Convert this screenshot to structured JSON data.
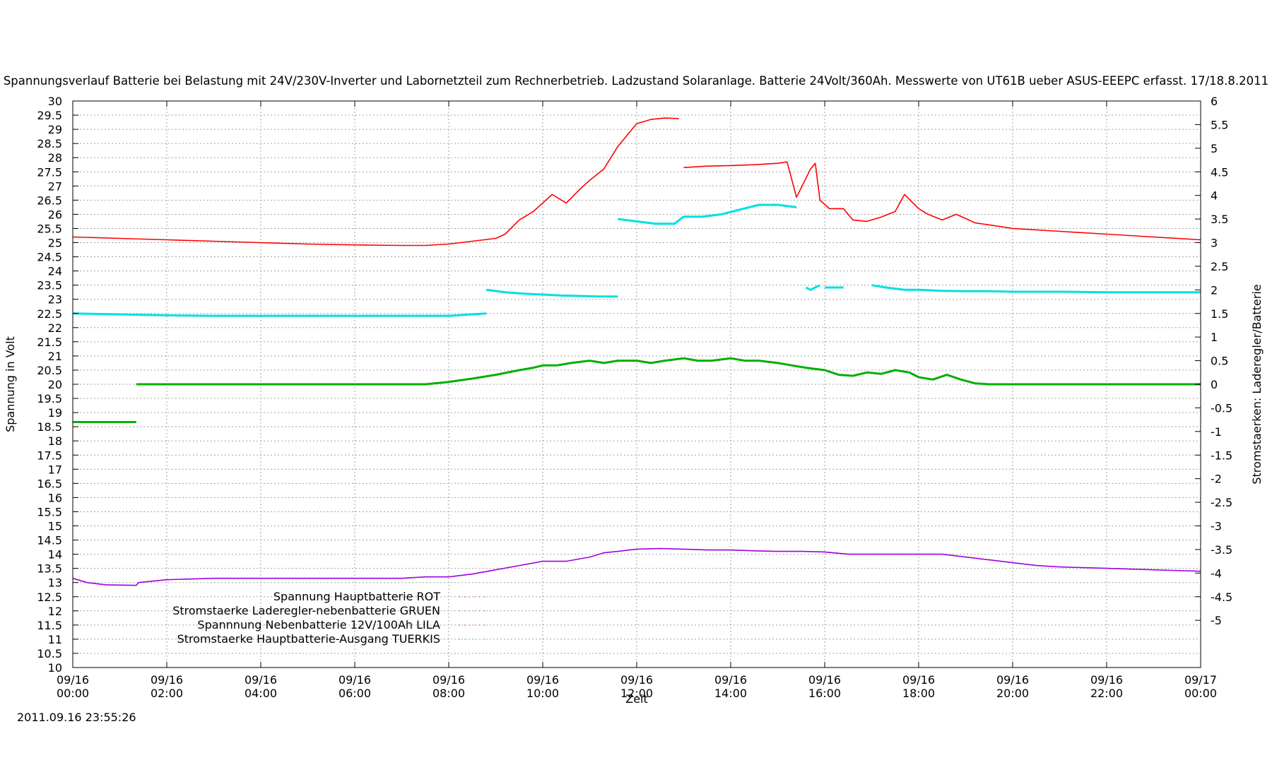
{
  "chart_data": {
    "type": "line",
    "title": "Spannungsverlauf Batterie bei Belastung mit 24V/230V-Inverter und Labornetzteil zum Rechnerbetrieb. Ladzustand Solaranlage. Batterie 24Volt/360Ah. Messwerte von UT61B ueber ASUS-EEEPC erfasst. 17/18.8.2011",
    "xlabel": "Zeit",
    "ylabel": "Spannung in Volt",
    "y2label": "Stromstaerken: Laderegler/Batterie",
    "timestamp": "2011.09.16 23:55:26",
    "xlim": [
      0,
      24
    ],
    "ylim": [
      10,
      30
    ],
    "y2lim": [
      -6,
      6
    ],
    "grid": true,
    "legend_position": "bottom-left",
    "x_ticks": [
      {
        "date": "09/16",
        "time": "00:00"
      },
      {
        "date": "09/16",
        "time": "02:00"
      },
      {
        "date": "09/16",
        "time": "04:00"
      },
      {
        "date": "09/16",
        "time": "06:00"
      },
      {
        "date": "09/16",
        "time": "08:00"
      },
      {
        "date": "09/16",
        "time": "10:00"
      },
      {
        "date": "09/16",
        "time": "12:00"
      },
      {
        "date": "09/16",
        "time": "14:00"
      },
      {
        "date": "09/16",
        "time": "16:00"
      },
      {
        "date": "09/16",
        "time": "18:00"
      },
      {
        "date": "09/16",
        "time": "20:00"
      },
      {
        "date": "09/16",
        "time": "22:00"
      },
      {
        "date": "09/17",
        "time": "00:00"
      }
    ],
    "y_ticks": [
      "10",
      "10.5",
      "11",
      "11.5",
      "12",
      "12.5",
      "13",
      "13.5",
      "14",
      "14.5",
      "15",
      "15.5",
      "16",
      "16.5",
      "17",
      "17.5",
      "18",
      "18.5",
      "19",
      "19.5",
      "20",
      "20.5",
      "21",
      "21.5",
      "22",
      "22.5",
      "23",
      "23.5",
      "24",
      "24.5",
      "25",
      "25.5",
      "26",
      "26.5",
      "27",
      "27.5",
      "28",
      "28.5",
      "29",
      "29.5",
      "30"
    ],
    "y2_ticks": [
      "-5",
      "-4.5",
      "-4",
      "-3.5",
      "-3",
      "-2.5",
      "-2",
      "-1.5",
      "-1",
      "-0.5",
      "0",
      "0.5",
      "1",
      "1.5",
      "2",
      "2.5",
      "3",
      "3.5",
      "4",
      "4.5",
      "5",
      "5.5",
      "6"
    ],
    "series": [
      {
        "name": "Spannung Hauptbatterie ROT",
        "color": "#ff0000",
        "axis": "y",
        "x": [
          0,
          1,
          2,
          3,
          4,
          5,
          6,
          7,
          7.5,
          8,
          8.5,
          9,
          9.2,
          9.5,
          9.8,
          10,
          10.2,
          10.5,
          10.8,
          11,
          11.3,
          11.6,
          11.8,
          12,
          12.3,
          12.6,
          12.9,
          null,
          13,
          13.5,
          14,
          14.5,
          15,
          15.2,
          15.4,
          15.7,
          15.8,
          15.9,
          16.1,
          16.4,
          16.6,
          16.9,
          17.2,
          17.5,
          17.7,
          18,
          18.2,
          18.5,
          18.8,
          19.2,
          20,
          21,
          22,
          23,
          24
        ],
        "y": [
          25.2,
          25.15,
          25.1,
          25.05,
          25.0,
          24.95,
          24.92,
          24.9,
          24.9,
          24.95,
          25.05,
          25.15,
          25.3,
          25.8,
          26.1,
          26.4,
          26.7,
          26.4,
          26.9,
          27.2,
          27.6,
          28.4,
          28.8,
          29.2,
          29.35,
          29.4,
          29.38,
          null,
          27.65,
          27.7,
          27.72,
          27.75,
          27.8,
          27.85,
          26.6,
          27.6,
          27.8,
          26.5,
          26.2,
          26.2,
          25.8,
          25.75,
          25.9,
          26.1,
          26.7,
          26.2,
          26.0,
          25.8,
          26.0,
          25.7,
          25.5,
          25.4,
          25.3,
          25.2,
          25.1
        ]
      },
      {
        "name": "Stromstaerke Laderegler-nebenbatterie GRUEN",
        "color": "#00b000",
        "axis": "y2",
        "x": [
          0,
          1.35,
          null,
          1.35,
          3,
          5,
          7,
          7.5,
          8,
          8.5,
          9,
          9.5,
          9.8,
          10,
          10.3,
          10.6,
          11,
          11.3,
          11.6,
          12,
          12.3,
          12.6,
          13,
          13.3,
          13.6,
          14,
          14.3,
          14.6,
          15,
          15.3,
          15.6,
          16,
          16.3,
          16.6,
          16.9,
          17.2,
          17.5,
          17.8,
          18,
          18.3,
          18.6,
          18.9,
          19.2,
          19.5,
          20,
          21,
          22,
          23,
          24
        ],
        "y": [
          -0.8,
          -0.8,
          null,
          0,
          0,
          0,
          0,
          0,
          0.05,
          0.12,
          0.2,
          0.3,
          0.35,
          0.4,
          0.4,
          0.45,
          0.5,
          0.45,
          0.5,
          0.5,
          0.45,
          0.5,
          0.55,
          0.5,
          0.5,
          0.55,
          0.5,
          0.5,
          0.45,
          0.4,
          0.35,
          0.3,
          0.2,
          0.18,
          0.25,
          0.22,
          0.3,
          0.25,
          0.15,
          0.1,
          0.2,
          0.1,
          0.02,
          0,
          0,
          0,
          0,
          0,
          0
        ]
      },
      {
        "name": "Spannnung Nebenbatterie 12V/100Ah LILA",
        "color": "#a000e0",
        "axis": "y",
        "x": [
          0,
          0.3,
          0.7,
          1.35,
          1.4,
          2,
          3,
          4,
          5,
          6,
          7,
          7.5,
          8,
          8.5,
          9,
          9.5,
          10,
          10.5,
          11,
          11.3,
          11.6,
          12,
          12.5,
          13,
          13.5,
          14,
          14.5,
          15,
          15.5,
          16,
          16.5,
          17,
          17.5,
          18,
          18.5,
          19,
          19.5,
          20,
          20.5,
          21,
          22,
          23,
          24
        ],
        "y": [
          13.15,
          13.0,
          12.92,
          12.9,
          13.0,
          13.1,
          13.15,
          13.15,
          13.15,
          13.15,
          13.15,
          13.2,
          13.2,
          13.3,
          13.45,
          13.6,
          13.75,
          13.75,
          13.9,
          14.05,
          14.1,
          14.18,
          14.2,
          14.18,
          14.15,
          14.15,
          14.12,
          14.1,
          14.1,
          14.08,
          14.0,
          14.0,
          14.0,
          14.0,
          14.0,
          13.9,
          13.8,
          13.7,
          13.6,
          13.55,
          13.5,
          13.45,
          13.4
        ]
      },
      {
        "name": "Stromstaerke Hauptbatterie-Ausgang TUERKIS",
        "color": "#00e0e0",
        "axis": "y2",
        "x": [
          0,
          1,
          2,
          3,
          4,
          5,
          6,
          7,
          8,
          8.8,
          null,
          8.8,
          9.2,
          9.6,
          10,
          10.4,
          10.8,
          11.2,
          11.6,
          null,
          11.6,
          12,
          12.4,
          12.8,
          13,
          13.4,
          13.8,
          14.2,
          14.6,
          15,
          15.4,
          null,
          15.6,
          15.7,
          15.9,
          null,
          16,
          16.1,
          16.4,
          null,
          17,
          17.3,
          17.7,
          18,
          18.5,
          19,
          19.5,
          20,
          21,
          22,
          23,
          24
        ],
        "y": [
          1.5,
          1.48,
          1.46,
          1.45,
          1.45,
          1.45,
          1.45,
          1.45,
          1.45,
          1.5,
          null,
          2.0,
          1.95,
          1.92,
          1.9,
          1.88,
          1.87,
          1.86,
          1.86,
          null,
          3.5,
          3.45,
          3.4,
          3.4,
          3.55,
          3.55,
          3.6,
          3.7,
          3.8,
          3.8,
          3.75,
          null,
          2.05,
          2.0,
          2.1,
          null,
          2.05,
          2.05,
          2.05,
          null,
          2.1,
          2.05,
          2.0,
          2.0,
          1.98,
          1.97,
          1.97,
          1.96,
          1.96,
          1.95,
          1.95,
          1.95
        ]
      }
    ]
  }
}
